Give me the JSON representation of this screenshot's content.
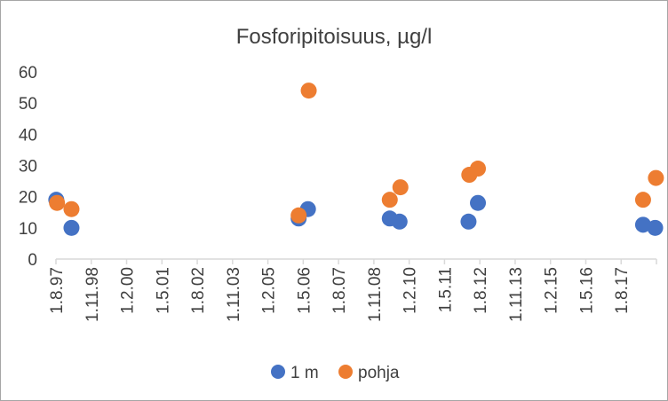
{
  "chart_data": {
    "type": "scatter",
    "title": "Fosforipitoisuus, µg/l",
    "xlabel": "",
    "ylabel": "",
    "ylim": [
      0,
      60
    ],
    "yticks": [
      "0",
      "10",
      "20",
      "30",
      "40",
      "50",
      "60"
    ],
    "xticks": [
      "1.8.97",
      "1.11.98",
      "1.2.00",
      "1.5.01",
      "1.8.02",
      "1.11.03",
      "1.2.05",
      "1.5.06",
      "1.8.07",
      "1.11.08",
      "1.2.10",
      "1.5.11",
      "1.8.12",
      "1.11.13",
      "1.2.15",
      "1.5.16",
      "1.8.17"
    ],
    "x_axis": "date",
    "grid": false,
    "legend_position": "bottom",
    "series": [
      {
        "name": "1 m",
        "color": "#4472C4",
        "points": [
          {
            "x": "1997-08-05",
            "y": 19
          },
          {
            "x": "1998-02-20",
            "y": 10
          },
          {
            "x": "2006-04-10",
            "y": 13
          },
          {
            "x": "2006-08-10",
            "y": 16
          },
          {
            "x": "2009-07-15",
            "y": 13
          },
          {
            "x": "2009-11-20",
            "y": 12
          },
          {
            "x": "2012-05-10",
            "y": 12
          },
          {
            "x": "2012-09-10",
            "y": 18
          },
          {
            "x": "2018-08-10",
            "y": 11
          },
          {
            "x": "2019-01-15",
            "y": 10
          }
        ]
      },
      {
        "name": "pohja",
        "color": "#ED7D31",
        "points": [
          {
            "x": "1997-08-15",
            "y": 18
          },
          {
            "x": "1998-02-20",
            "y": 16
          },
          {
            "x": "2006-04-10",
            "y": 14
          },
          {
            "x": "2006-08-20",
            "y": 54
          },
          {
            "x": "2009-07-15",
            "y": 19
          },
          {
            "x": "2009-12-01",
            "y": 23
          },
          {
            "x": "2012-05-20",
            "y": 27
          },
          {
            "x": "2012-09-10",
            "y": 29
          },
          {
            "x": "2018-08-10",
            "y": 19
          },
          {
            "x": "2019-01-25",
            "y": 26
          }
        ]
      }
    ]
  }
}
